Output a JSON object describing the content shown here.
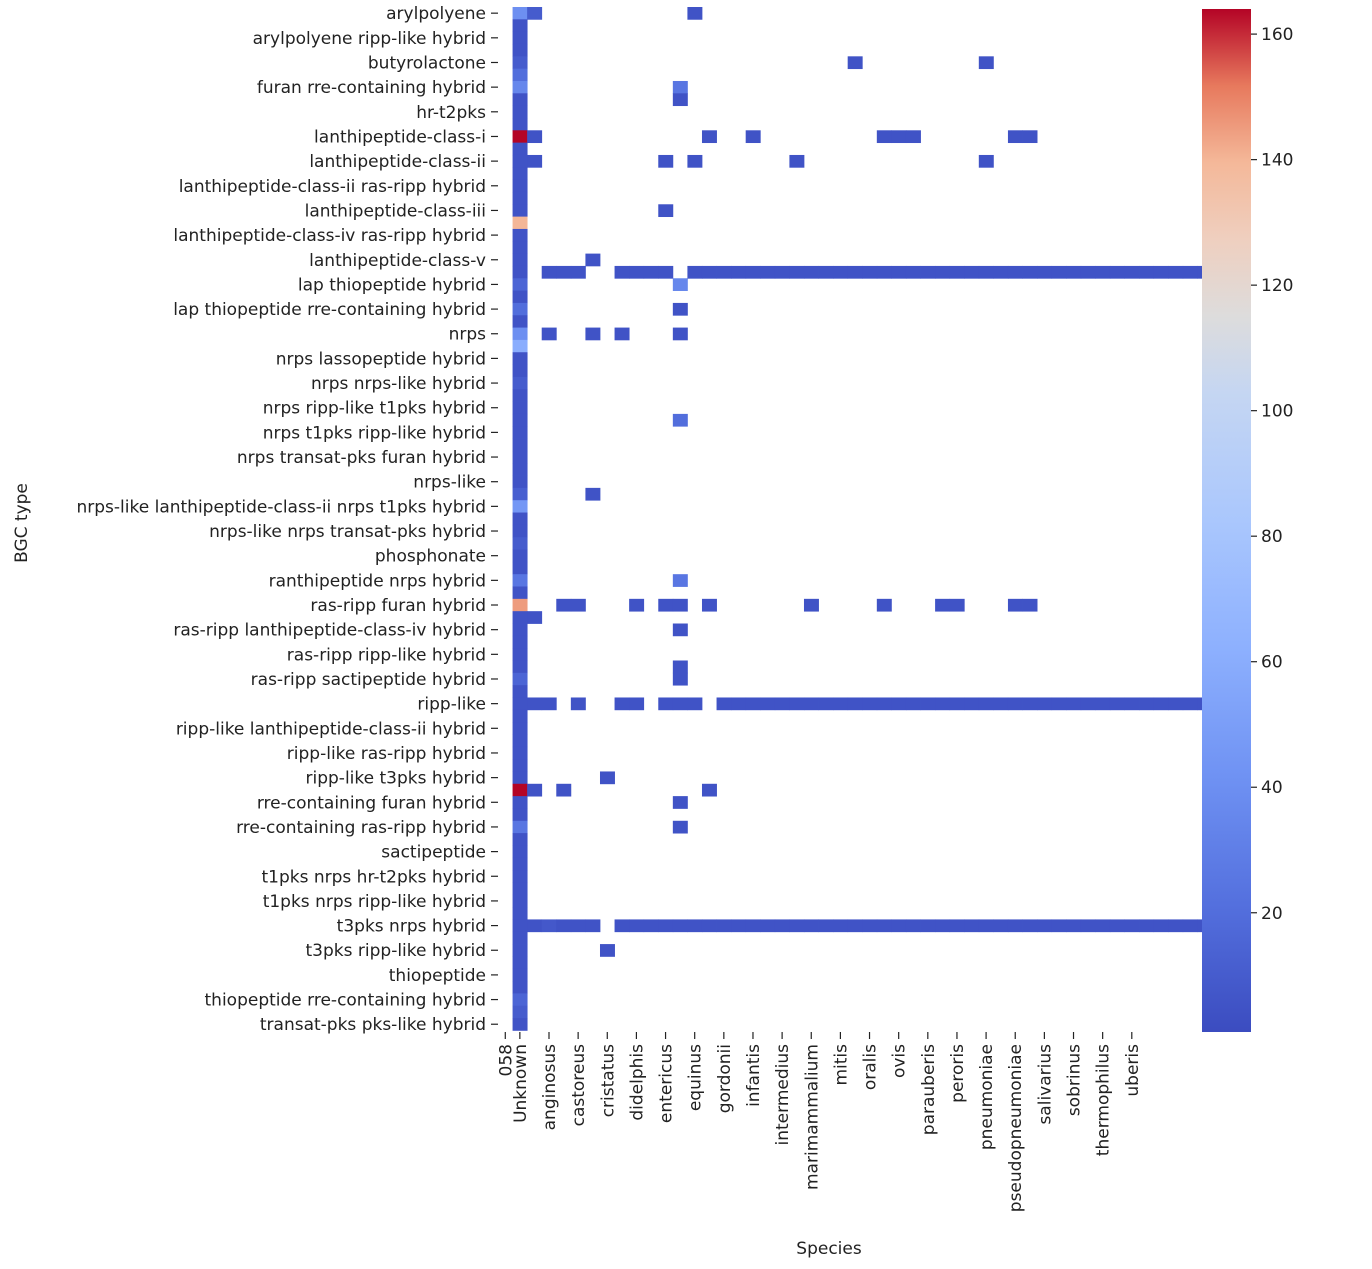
{
  "chart_data": {
    "type": "heatmap",
    "title": "",
    "xlabel": "Species",
    "ylabel": "BGC type",
    "colormap": "coolwarm",
    "color_range": [
      1,
      164
    ],
    "colorbar_ticks": [
      20,
      40,
      60,
      80,
      100,
      120,
      140,
      160
    ],
    "x_columns": [
      "058",
      "Unknown",
      "",
      "anginosus",
      "",
      "castoreus",
      "",
      "cristatus",
      "",
      "didelphis",
      "",
      "entericus",
      "",
      "equinus",
      "",
      "gordonii",
      "",
      "infantis",
      "",
      "intermedius",
      "",
      "marimammalium",
      "",
      "mitis",
      "",
      "oralis",
      "",
      "ovis",
      "",
      "parauberis",
      "",
      "peroris",
      "",
      "pneumoniae",
      "",
      "pseudopneumoniae",
      "",
      "salivarius",
      "",
      "sobrinus",
      "",
      "thermophilus",
      "",
      "uberis",
      ""
    ],
    "x_tick_labels": [
      "058",
      "Unknown",
      "anginosus",
      "castoreus",
      "cristatus",
      "didelphis",
      "entericus",
      "equinus",
      "gordonii",
      "infantis",
      "intermedius",
      "marimammalium",
      "mitis",
      "oralis",
      "ovis",
      "parauberis",
      "peroris",
      "pneumoniae",
      "pseudopneumoniae",
      "salivarius",
      "sobrinus",
      "thermophilus",
      "uberis"
    ],
    "y_rows": [
      "arylpolyene",
      "",
      "arylpolyene ripp-like hybrid",
      "",
      "butyrolactone",
      "",
      "furan rre-containing hybrid",
      "",
      "hr-t2pks",
      "",
      "lanthipeptide-class-i",
      "",
      "lanthipeptide-class-ii",
      "",
      "lanthipeptide-class-ii ras-ripp hybrid",
      "",
      "lanthipeptide-class-iii",
      "",
      "lanthipeptide-class-iv ras-ripp hybrid",
      "",
      "lanthipeptide-class-v",
      "",
      "lap thiopeptide hybrid",
      "",
      "lap thiopeptide rre-containing hybrid",
      "",
      "nrps",
      "",
      "nrps lassopeptide hybrid",
      "",
      "nrps nrps-like hybrid",
      "",
      "nrps ripp-like t1pks hybrid",
      "",
      "nrps t1pks ripp-like hybrid",
      "",
      "nrps transat-pks furan hybrid",
      "",
      "nrps-like",
      "",
      "nrps-like lanthipeptide-class-ii nrps t1pks hybrid",
      "",
      "nrps-like nrps transat-pks hybrid",
      "",
      "phosphonate",
      "",
      "ranthipeptide nrps hybrid",
      "",
      "ras-ripp furan hybrid",
      "",
      "ras-ripp lanthipeptide-class-iv hybrid",
      "",
      "ras-ripp ripp-like hybrid",
      "",
      "ras-ripp sactipeptide hybrid",
      "",
      "ripp-like",
      "",
      "ripp-like lanthipeptide-class-ii hybrid",
      "",
      "ripp-like ras-ripp hybrid",
      "",
      "ripp-like t3pks hybrid",
      "",
      "rre-containing furan hybrid",
      "",
      "rre-containing ras-ripp hybrid",
      "",
      "sactipeptide",
      "",
      "t1pks nrps hr-t2pks hybrid",
      "",
      "t1pks nrps ripp-like hybrid",
      "",
      "t3pks nrps hybrid",
      "",
      "t3pks ripp-like hybrid",
      "",
      "thiopeptide",
      "",
      "thiopeptide rre-containing hybrid",
      "",
      "transat-pks pks-like hybrid"
    ],
    "y_tick_labels": [
      "arylpolyene",
      "arylpolyene ripp-like hybrid",
      "butyrolactone",
      "furan rre-containing hybrid",
      "hr-t2pks",
      "lanthipeptide-class-i",
      "lanthipeptide-class-ii",
      "lanthipeptide-class-ii ras-ripp hybrid",
      "lanthipeptide-class-iii",
      "lanthipeptide-class-iv ras-ripp hybrid",
      "lanthipeptide-class-v",
      "lap thiopeptide hybrid",
      "lap thiopeptide rre-containing hybrid",
      "nrps",
      "nrps lassopeptide hybrid",
      "nrps nrps-like hybrid",
      "nrps ripp-like t1pks hybrid",
      "nrps t1pks ripp-like hybrid",
      "nrps transat-pks furan hybrid",
      "nrps-like",
      "nrps-like lanthipeptide-class-ii nrps t1pks hybrid",
      "nrps-like nrps transat-pks hybrid",
      "phosphonate",
      "ranthipeptide nrps hybrid",
      "ras-ripp furan hybrid",
      "ras-ripp lanthipeptide-class-iv hybrid",
      "ras-ripp ripp-like hybrid",
      "ras-ripp sactipeptide hybrid",
      "ripp-like",
      "ripp-like lanthipeptide-class-ii hybrid",
      "ripp-like ras-ripp hybrid",
      "ripp-like t3pks hybrid",
      "rre-containing furan hybrid",
      "rre-containing ras-ripp hybrid",
      "sactipeptide",
      "t1pks nrps hr-t2pks hybrid",
      "t1pks nrps ripp-like hybrid",
      "t3pks nrps hybrid",
      "t3pks ripp-like hybrid",
      "thiopeptide",
      "thiopeptide rre-containing hybrid",
      "transat-pks pks-like hybrid"
    ],
    "cells": [
      [
        1,
        0,
        40
      ],
      [
        1,
        1,
        5
      ],
      [
        1,
        2,
        5
      ],
      [
        1,
        3,
        5
      ],
      [
        1,
        4,
        10
      ],
      [
        1,
        5,
        20
      ],
      [
        1,
        6,
        35
      ],
      [
        1,
        7,
        5
      ],
      [
        1,
        8,
        5
      ],
      [
        1,
        9,
        5
      ],
      [
        1,
        10,
        164
      ],
      [
        1,
        11,
        5
      ],
      [
        1,
        12,
        5
      ],
      [
        1,
        13,
        5
      ],
      [
        1,
        14,
        5
      ],
      [
        1,
        15,
        5
      ],
      [
        1,
        16,
        5
      ],
      [
        1,
        17,
        140
      ],
      [
        1,
        18,
        5
      ],
      [
        1,
        19,
        5
      ],
      [
        1,
        20,
        5
      ],
      [
        1,
        21,
        5
      ],
      [
        1,
        22,
        15
      ],
      [
        1,
        23,
        5
      ],
      [
        1,
        24,
        20
      ],
      [
        1,
        25,
        5
      ],
      [
        1,
        26,
        40
      ],
      [
        1,
        27,
        60
      ],
      [
        1,
        28,
        5
      ],
      [
        1,
        29,
        5
      ],
      [
        1,
        30,
        10
      ],
      [
        1,
        31,
        5
      ],
      [
        1,
        32,
        5
      ],
      [
        1,
        33,
        5
      ],
      [
        1,
        34,
        5
      ],
      [
        1,
        35,
        5
      ],
      [
        1,
        36,
        5
      ],
      [
        1,
        37,
        5
      ],
      [
        1,
        38,
        5
      ],
      [
        1,
        39,
        12
      ],
      [
        1,
        40,
        45
      ],
      [
        1,
        41,
        5
      ],
      [
        1,
        42,
        5
      ],
      [
        1,
        43,
        10
      ],
      [
        1,
        44,
        5
      ],
      [
        1,
        45,
        5
      ],
      [
        1,
        46,
        25
      ],
      [
        1,
        47,
        5
      ],
      [
        1,
        48,
        145
      ],
      [
        1,
        49,
        5
      ],
      [
        1,
        50,
        5
      ],
      [
        1,
        51,
        5
      ],
      [
        1,
        52,
        5
      ],
      [
        1,
        53,
        5
      ],
      [
        1,
        54,
        15
      ],
      [
        1,
        55,
        5
      ],
      [
        1,
        56,
        5
      ],
      [
        1,
        57,
        5
      ],
      [
        1,
        58,
        5
      ],
      [
        1,
        59,
        5
      ],
      [
        1,
        60,
        5
      ],
      [
        1,
        61,
        5
      ],
      [
        1,
        62,
        5
      ],
      [
        1,
        63,
        164
      ],
      [
        1,
        64,
        5
      ],
      [
        1,
        65,
        5
      ],
      [
        1,
        66,
        25
      ],
      [
        1,
        67,
        5
      ],
      [
        1,
        68,
        5
      ],
      [
        1,
        69,
        5
      ],
      [
        1,
        70,
        5
      ],
      [
        1,
        71,
        5
      ],
      [
        1,
        72,
        5
      ],
      [
        1,
        73,
        5
      ],
      [
        1,
        74,
        5
      ],
      [
        1,
        75,
        5
      ],
      [
        1,
        76,
        5
      ],
      [
        1,
        77,
        5
      ],
      [
        1,
        78,
        5
      ],
      [
        1,
        79,
        5
      ],
      [
        1,
        80,
        15
      ],
      [
        1,
        81,
        10
      ],
      [
        1,
        82,
        5
      ],
      [
        2,
        0,
        10
      ],
      [
        2,
        10,
        5
      ],
      [
        2,
        12,
        5
      ],
      [
        2,
        49,
        5
      ],
      [
        2,
        56,
        5
      ],
      [
        2,
        63,
        5
      ],
      [
        2,
        74,
        5
      ],
      [
        3,
        21,
        5
      ],
      [
        3,
        26,
        5
      ],
      [
        3,
        56,
        5
      ],
      [
        3,
        74,
        8
      ],
      [
        4,
        21,
        5
      ],
      [
        4,
        48,
        5
      ],
      [
        4,
        63,
        5
      ],
      [
        4,
        74,
        5
      ],
      [
        5,
        21,
        5
      ],
      [
        5,
        48,
        5
      ],
      [
        5,
        56,
        5
      ],
      [
        5,
        74,
        5
      ],
      [
        6,
        20,
        5
      ],
      [
        6,
        26,
        5
      ],
      [
        6,
        39,
        5
      ],
      [
        6,
        74,
        5
      ],
      [
        7,
        62,
        5
      ],
      [
        7,
        76,
        5
      ],
      [
        8,
        21,
        5
      ],
      [
        8,
        26,
        5
      ],
      [
        8,
        56,
        5
      ],
      [
        8,
        74,
        5
      ],
      [
        9,
        21,
        5
      ],
      [
        9,
        48,
        5
      ],
      [
        9,
        56,
        5
      ],
      [
        9,
        74,
        5
      ],
      [
        10,
        21,
        5
      ],
      [
        10,
        74,
        5
      ],
      [
        11,
        12,
        5
      ],
      [
        11,
        16,
        5
      ],
      [
        11,
        21,
        5
      ],
      [
        11,
        48,
        5
      ],
      [
        11,
        56,
        5
      ],
      [
        11,
        74,
        5
      ],
      [
        12,
        6,
        25
      ],
      [
        12,
        7,
        5
      ],
      [
        12,
        22,
        35
      ],
      [
        12,
        24,
        5
      ],
      [
        12,
        26,
        5
      ],
      [
        12,
        33,
        20
      ],
      [
        12,
        46,
        25
      ],
      [
        12,
        48,
        5
      ],
      [
        12,
        50,
        5
      ],
      [
        12,
        53,
        5
      ],
      [
        12,
        54,
        5
      ],
      [
        12,
        56,
        5
      ],
      [
        12,
        64,
        5
      ],
      [
        12,
        66,
        5
      ],
      [
        12,
        74,
        5
      ],
      [
        13,
        0,
        5
      ],
      [
        13,
        12,
        5
      ],
      [
        13,
        21,
        5
      ],
      [
        13,
        56,
        5
      ],
      [
        13,
        74,
        5
      ],
      [
        14,
        10,
        5
      ],
      [
        14,
        21,
        5
      ],
      [
        14,
        48,
        5
      ],
      [
        14,
        63,
        5
      ],
      [
        14,
        74,
        5
      ],
      [
        15,
        21,
        5
      ],
      [
        15,
        56,
        5
      ],
      [
        15,
        74,
        5
      ],
      [
        16,
        21,
        5
      ],
      [
        16,
        56,
        5
      ],
      [
        16,
        74,
        5
      ],
      [
        17,
        10,
        5
      ],
      [
        17,
        21,
        5
      ],
      [
        17,
        56,
        5
      ],
      [
        17,
        74,
        5
      ],
      [
        18,
        21,
        5
      ],
      [
        18,
        56,
        5
      ],
      [
        18,
        74,
        5
      ],
      [
        19,
        21,
        5
      ],
      [
        19,
        56,
        5
      ],
      [
        19,
        74,
        5
      ],
      [
        20,
        12,
        5
      ],
      [
        20,
        21,
        5
      ],
      [
        20,
        56,
        5
      ],
      [
        20,
        74,
        5
      ],
      [
        21,
        21,
        5
      ],
      [
        21,
        48,
        5
      ],
      [
        21,
        56,
        5
      ],
      [
        21,
        74,
        5
      ],
      [
        22,
        21,
        5
      ],
      [
        22,
        56,
        5
      ],
      [
        22,
        74,
        5
      ],
      [
        23,
        21,
        5
      ],
      [
        23,
        56,
        5
      ],
      [
        23,
        74,
        5
      ],
      [
        24,
        4,
        5
      ],
      [
        24,
        21,
        5
      ],
      [
        24,
        56,
        5
      ],
      [
        24,
        74,
        5
      ],
      [
        25,
        21,
        5
      ],
      [
        25,
        56,
        5
      ],
      [
        25,
        74,
        5
      ],
      [
        26,
        10,
        5
      ],
      [
        26,
        21,
        5
      ],
      [
        26,
        48,
        5
      ],
      [
        26,
        56,
        5
      ],
      [
        26,
        74,
        5
      ],
      [
        27,
        10,
        5
      ],
      [
        27,
        21,
        5
      ],
      [
        27,
        56,
        5
      ],
      [
        27,
        74,
        5
      ],
      [
        28,
        10,
        5
      ],
      [
        28,
        21,
        5
      ],
      [
        28,
        56,
        5
      ],
      [
        28,
        74,
        5
      ],
      [
        29,
        21,
        5
      ],
      [
        29,
        56,
        5
      ],
      [
        29,
        74,
        5
      ],
      [
        30,
        21,
        5
      ],
      [
        30,
        48,
        5
      ],
      [
        30,
        56,
        5
      ],
      [
        30,
        74,
        5
      ],
      [
        31,
        21,
        5
      ],
      [
        31,
        48,
        5
      ],
      [
        31,
        56,
        5
      ],
      [
        31,
        74,
        5
      ],
      [
        32,
        21,
        5
      ],
      [
        32,
        56,
        5
      ],
      [
        32,
        74,
        5
      ],
      [
        33,
        4,
        5
      ],
      [
        33,
        12,
        5
      ],
      [
        33,
        21,
        5
      ],
      [
        33,
        56,
        5
      ],
      [
        33,
        74,
        5
      ],
      [
        34,
        21,
        5
      ],
      [
        34,
        56,
        5
      ],
      [
        34,
        74,
        5
      ],
      [
        35,
        10,
        5
      ],
      [
        35,
        21,
        5
      ],
      [
        35,
        48,
        5
      ],
      [
        35,
        56,
        5
      ],
      [
        35,
        74,
        5
      ],
      [
        36,
        10,
        5
      ],
      [
        36,
        21,
        5
      ],
      [
        36,
        48,
        5
      ],
      [
        36,
        56,
        5
      ],
      [
        36,
        74,
        5
      ],
      [
        37,
        21,
        5
      ],
      [
        37,
        56,
        5
      ],
      [
        37,
        74,
        5
      ],
      [
        38,
        21,
        5
      ],
      [
        38,
        56,
        5
      ],
      [
        38,
        74,
        5
      ],
      [
        39,
        21,
        5
      ],
      [
        39,
        56,
        5
      ],
      [
        39,
        74,
        5
      ],
      [
        40,
        21,
        5
      ],
      [
        40,
        56,
        5
      ],
      [
        40,
        74,
        5
      ],
      [
        41,
        21,
        5
      ],
      [
        41,
        56,
        5
      ],
      [
        41,
        74,
        5
      ],
      [
        42,
        21,
        5
      ],
      [
        42,
        56,
        5
      ],
      [
        42,
        74,
        5
      ],
      [
        43,
        21,
        5
      ],
      [
        43,
        56,
        5
      ],
      [
        43,
        74,
        5
      ],
      [
        44,
        21,
        5
      ],
      [
        44,
        56,
        5
      ],
      [
        44,
        74,
        5
      ],
      [
        45,
        21,
        5
      ],
      [
        45,
        56,
        5
      ],
      [
        45,
        74,
        5
      ],
      [
        46,
        21,
        5
      ],
      [
        46,
        56,
        5
      ],
      [
        46,
        74,
        5
      ],
      [
        47,
        21,
        5
      ],
      [
        47,
        56,
        5
      ],
      [
        47,
        74,
        5
      ],
      [
        48,
        21,
        5
      ],
      [
        48,
        56,
        5
      ],
      [
        48,
        74,
        5
      ]
    ]
  },
  "colors": {
    "background": "#ffffff",
    "text": "#222222"
  }
}
